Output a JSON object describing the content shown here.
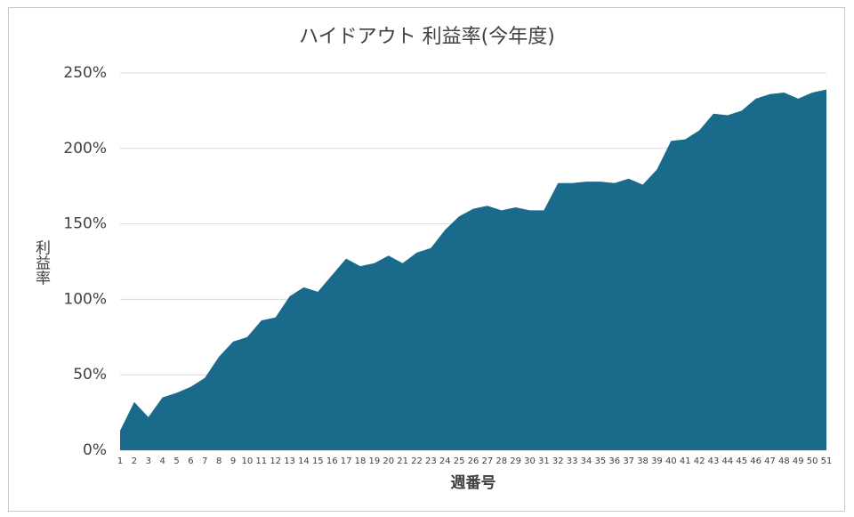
{
  "chart_data": {
    "type": "area",
    "title": "ハイドアウト 利益率(今年度)",
    "y_label": "利益率",
    "x_label": "週番号",
    "categories": [
      "1",
      "2",
      "3",
      "4",
      "5",
      "6",
      "7",
      "8",
      "9",
      "10",
      "11",
      "12",
      "13",
      "14",
      "15",
      "16",
      "17",
      "18",
      "19",
      "20",
      "21",
      "22",
      "23",
      "24",
      "25",
      "26",
      "27",
      "28",
      "29",
      "30",
      "31",
      "32",
      "33",
      "34",
      "35",
      "36",
      "37",
      "38",
      "39",
      "40",
      "41",
      "42",
      "43",
      "44",
      "45",
      "46",
      "47",
      "48",
      "49",
      "50",
      "51"
    ],
    "values": [
      13,
      32,
      22,
      35,
      38,
      42,
      48,
      62,
      72,
      75,
      86,
      88,
      102,
      108,
      105,
      116,
      127,
      122,
      124,
      129,
      124,
      131,
      134,
      146,
      155,
      160,
      162,
      159,
      161,
      159,
      159,
      177,
      177,
      178,
      178,
      177,
      180,
      176,
      186,
      205,
      206,
      212,
      223,
      222,
      225,
      233,
      236,
      237,
      233,
      237,
      239
    ],
    "color": "#1a6a8c",
    "ylim": [
      0,
      250
    ],
    "yticks": [
      {
        "value": 0,
        "label": "0%"
      },
      {
        "value": 50,
        "label": "50%"
      },
      {
        "value": 100,
        "label": "100%"
      },
      {
        "value": 150,
        "label": "150%"
      },
      {
        "value": 200,
        "label": "200%"
      },
      {
        "value": 250,
        "label": "250%"
      }
    ],
    "grid": true
  }
}
